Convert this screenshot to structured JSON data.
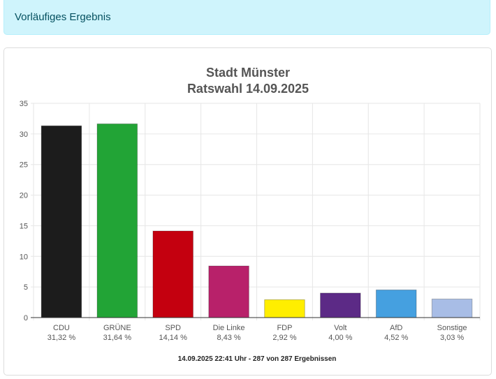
{
  "alert": {
    "text": "Vorläufiges Ergebnis"
  },
  "chart_data": {
    "type": "bar",
    "title": "Stadt Münster",
    "subtitle": "Ratswahl 14.09.2025",
    "categories": [
      "CDU",
      "GRÜNE",
      "SPD",
      "Die Linke",
      "FDP",
      "Volt",
      "AfD",
      "Sonstige"
    ],
    "value_labels": [
      "31,32 %",
      "31,64 %",
      "14,14 %",
      "8,43 %",
      "2,92 %",
      "4,00 %",
      "4,52 %",
      "3,03 %"
    ],
    "values": [
      31.32,
      31.64,
      14.14,
      8.43,
      2.92,
      4.0,
      4.52,
      3.03
    ],
    "colors": [
      "#1c1c1c",
      "#22a436",
      "#c4000f",
      "#b8216a",
      "#ffee00",
      "#5c2a86",
      "#45a0e0",
      "#a8bde6"
    ],
    "ylim": [
      0,
      35
    ],
    "yticks": [
      "0",
      "5",
      "10",
      "15",
      "20",
      "25",
      "30",
      "35"
    ],
    "grid": true,
    "footer": "14.09.2025 22:41 Uhr - 287 von 287 Ergebnissen"
  }
}
